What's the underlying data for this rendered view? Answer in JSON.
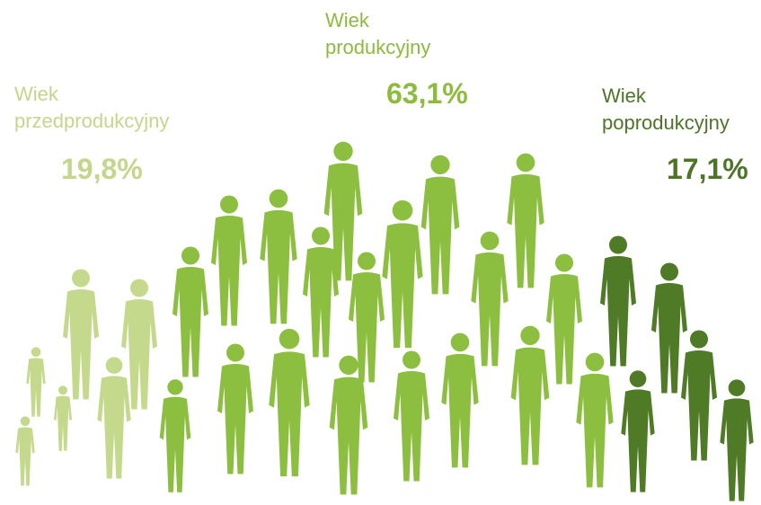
{
  "groups": [
    {
      "label_lines": [
        "Wiek",
        "przedprodukcyjny"
      ],
      "value": "19,8%"
    },
    {
      "label_lines": [
        "Wiek",
        "produkcyjny"
      ],
      "value": "63,1%"
    },
    {
      "label_lines": [
        "Wiek",
        "poprodukcyjny"
      ],
      "value": "17,1%"
    }
  ]
}
